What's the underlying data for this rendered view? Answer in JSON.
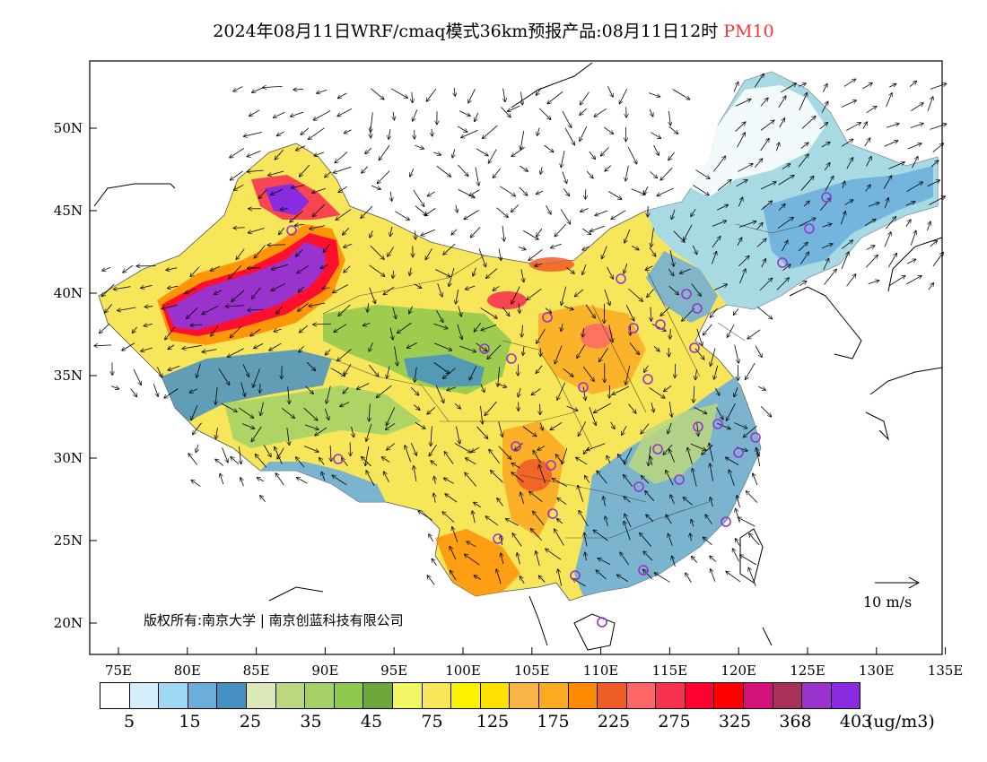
{
  "title": {
    "main": "2024年08月11日WRF/cmaq模式36km预报产品:08月11日12时",
    "variable": "PM10"
  },
  "axes": {
    "x_ticks": [
      "75E",
      "80E",
      "85E",
      "90E",
      "95E",
      "100E",
      "105E",
      "110E",
      "115E",
      "120E",
      "125E",
      "130E",
      "135E"
    ],
    "y_ticks": [
      "50N",
      "45N",
      "40N",
      "35N",
      "30N",
      "25N",
      "20N"
    ]
  },
  "copyright": "版权所有:南京大学 | 南京创蓝科技有限公司",
  "scale": {
    "label": "10 m/s"
  },
  "legend": {
    "colors": [
      "#ffffff",
      "#d6eefb",
      "#9fd8f3",
      "#6baedc",
      "#4690c4",
      "#dbe8b8",
      "#bcd77e",
      "#a6d167",
      "#8ec84e",
      "#6ea83b",
      "#f2f564",
      "#f7e55a",
      "#fff200",
      "#ffe100",
      "#f8b445",
      "#fbaa22",
      "#ff8c00",
      "#ef5d27",
      "#ff6666",
      "#f7334f",
      "#ff0033",
      "#ff0000",
      "#d2127a",
      "#a8325a",
      "#9a32cd",
      "#8a2be2"
    ],
    "labels": [
      "5",
      "15",
      "25",
      "35",
      "45",
      "75",
      "125",
      "175",
      "225",
      "275",
      "325",
      "368",
      "403"
    ],
    "unit": "(ug/m3)"
  }
}
